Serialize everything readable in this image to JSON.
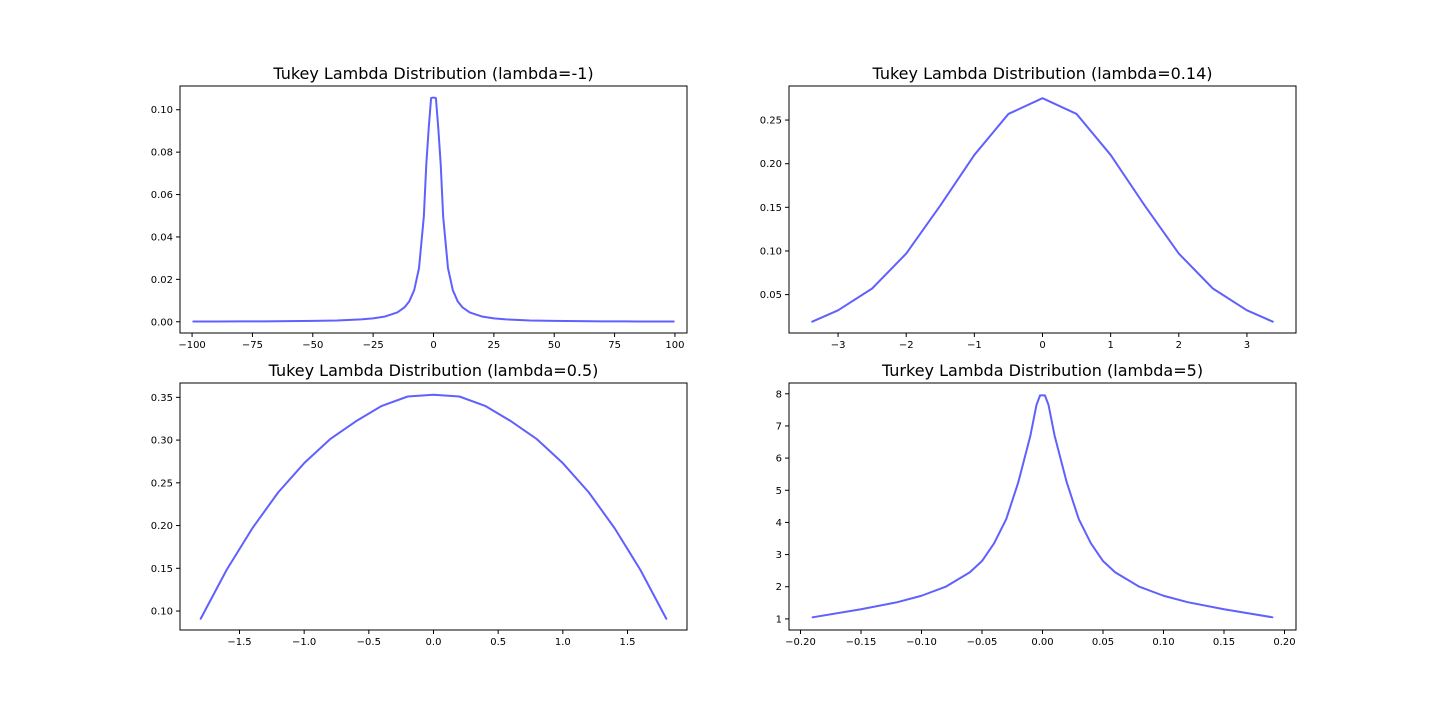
{
  "colors": {
    "line": "#6060ff",
    "axes": "#000000",
    "background": "#ffffff"
  },
  "chart_data": [
    {
      "type": "line",
      "title": "Tukey Lambda Distribution (lambda=-1)",
      "lambda": -1,
      "xlim": [
        -105,
        105
      ],
      "ylim": [
        -0.0053,
        0.1112
      ],
      "xticks": [
        -100,
        -75,
        -50,
        -25,
        0,
        25,
        50,
        75,
        100
      ],
      "xtick_labels": [
        "−100",
        "−75",
        "−50",
        "−25",
        "0",
        "25",
        "50",
        "75",
        "100"
      ],
      "yticks": [
        0.0,
        0.02,
        0.04,
        0.06,
        0.08,
        0.1
      ],
      "ytick_labels": [
        "0.00",
        "0.02",
        "0.04",
        "0.06",
        "0.08",
        "0.10"
      ],
      "grid": false,
      "series": [
        {
          "x": [
            -99.5,
            -90,
            -80,
            -70,
            -60,
            -50,
            -40,
            -30,
            -25,
            -20,
            -15,
            -12,
            -10,
            -8,
            -6,
            -4,
            -3,
            -2,
            -1,
            -0.3,
            0.3,
            1,
            2,
            3,
            4,
            6,
            8,
            10,
            12,
            15,
            20,
            25,
            30,
            40,
            50,
            60,
            70,
            80,
            90,
            99.5
          ],
          "y": [
            0.0001,
            0.00012,
            0.00016,
            0.0002,
            0.00028,
            0.0004,
            0.00062,
            0.0011,
            0.0016,
            0.0025,
            0.0044,
            0.0068,
            0.0097,
            0.0149,
            0.0253,
            0.0496,
            0.074,
            0.091,
            0.1055,
            0.1057,
            0.1057,
            0.1055,
            0.091,
            0.074,
            0.0496,
            0.0253,
            0.0149,
            0.0097,
            0.0068,
            0.0044,
            0.0025,
            0.0016,
            0.0011,
            0.00062,
            0.0004,
            0.00028,
            0.0002,
            0.00016,
            0.00012,
            0.0001
          ]
        }
      ]
    },
    {
      "type": "line",
      "title": "Tukey Lambda Distribution (lambda=0.14)",
      "lambda": 0.14,
      "xlim": [
        -3.72,
        3.72
      ],
      "ylim": [
        0.006,
        0.289
      ],
      "xticks": [
        -3,
        -2,
        -1,
        0,
        1,
        2,
        3
      ],
      "xtick_labels": [
        "−3",
        "−2",
        "−1",
        "0",
        "1",
        "2",
        "3"
      ],
      "yticks": [
        0.05,
        0.1,
        0.15,
        0.2,
        0.25
      ],
      "ytick_labels": [
        "0.05",
        "0.10",
        "0.15",
        "0.20",
        "0.25"
      ],
      "grid": false,
      "series": [
        {
          "x": [
            -3.38,
            -3.0,
            -2.5,
            -2.0,
            -1.5,
            -1.0,
            -0.5,
            0.0,
            0.5,
            1.0,
            1.5,
            2.0,
            2.5,
            3.0,
            3.38
          ],
          "y": [
            0.019,
            0.032,
            0.057,
            0.097,
            0.152,
            0.21,
            0.257,
            0.275,
            0.257,
            0.21,
            0.152,
            0.097,
            0.057,
            0.032,
            0.019
          ]
        }
      ]
    },
    {
      "type": "line",
      "title": "Tukey Lambda Distribution (lambda=0.5)",
      "lambda": 0.5,
      "xlim": [
        -1.96,
        1.96
      ],
      "ylim": [
        0.0778,
        0.3668
      ],
      "xticks": [
        -1.5,
        -1.0,
        -0.5,
        0.0,
        0.5,
        1.0,
        1.5
      ],
      "xtick_labels": [
        "−1.5",
        "−1.0",
        "−0.5",
        "0.0",
        "0.5",
        "1.0",
        "1.5"
      ],
      "yticks": [
        0.1,
        0.15,
        0.2,
        0.25,
        0.3,
        0.35
      ],
      "ytick_labels": [
        "0.10",
        "0.15",
        "0.20",
        "0.25",
        "0.30",
        "0.35"
      ],
      "grid": false,
      "series": [
        {
          "x": [
            -1.8,
            -1.6,
            -1.4,
            -1.2,
            -1.0,
            -0.8,
            -0.6,
            -0.4,
            -0.2,
            0.0,
            0.2,
            0.4,
            0.6,
            0.8,
            1.0,
            1.2,
            1.4,
            1.6,
            1.8
          ],
          "y": [
            0.091,
            0.148,
            0.197,
            0.239,
            0.273,
            0.301,
            0.322,
            0.34,
            0.351,
            0.353,
            0.351,
            0.34,
            0.322,
            0.301,
            0.273,
            0.239,
            0.197,
            0.148,
            0.091
          ]
        }
      ]
    },
    {
      "type": "line",
      "title": "Turkey Lambda Distribution (lambda=5)",
      "lambda": 5,
      "xlim": [
        -0.2095,
        0.2095
      ],
      "ylim": [
        0.655,
        8.335
      ],
      "xticks": [
        -0.2,
        -0.15,
        -0.1,
        -0.05,
        0.0,
        0.05,
        0.1,
        0.15,
        0.2
      ],
      "xtick_labels": [
        "−0.20",
        "−0.15",
        "−0.10",
        "−0.05",
        "0.00",
        "0.05",
        "0.10",
        "0.15",
        "0.20"
      ],
      "yticks": [
        1,
        2,
        3,
        4,
        5,
        6,
        7,
        8
      ],
      "ytick_labels": [
        "1",
        "2",
        "3",
        "4",
        "5",
        "6",
        "7",
        "8"
      ],
      "grid": false,
      "series": [
        {
          "x": [
            -0.19,
            -0.15,
            -0.12,
            -0.1,
            -0.08,
            -0.06,
            -0.05,
            -0.04,
            -0.03,
            -0.02,
            -0.01,
            -0.005,
            -0.002,
            0.0,
            0.002,
            0.005,
            0.01,
            0.02,
            0.03,
            0.04,
            0.05,
            0.06,
            0.08,
            0.1,
            0.12,
            0.15,
            0.19
          ],
          "y": [
            1.05,
            1.3,
            1.52,
            1.72,
            2.0,
            2.45,
            2.8,
            3.35,
            4.1,
            5.25,
            6.7,
            7.65,
            7.95,
            7.95,
            7.95,
            7.65,
            6.7,
            5.25,
            4.1,
            3.35,
            2.8,
            2.45,
            2.0,
            1.72,
            1.52,
            1.3,
            1.05
          ]
        }
      ]
    }
  ]
}
